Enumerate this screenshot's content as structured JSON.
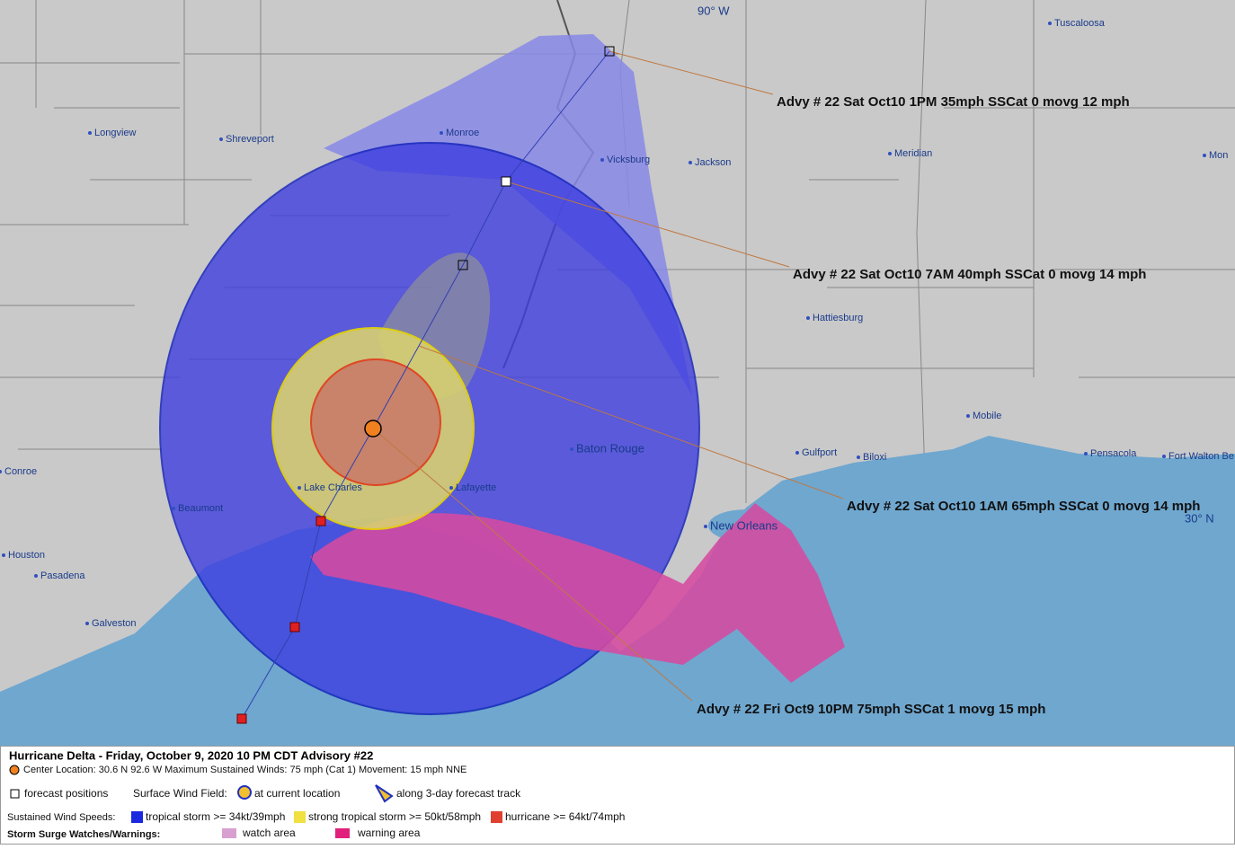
{
  "map": {
    "graticule": {
      "lon": "90° W",
      "lat": "30° N"
    },
    "cities": [
      "Tuscaloosa",
      "Longview",
      "Shreveport",
      "Monroe",
      "Vicksburg",
      "Jackson",
      "Meridian",
      "Mon",
      "Hattiesburg",
      "Mobile",
      "Gulfport",
      "Biloxi",
      "Pensacola",
      "Fort Walton Be",
      "Baton Rouge",
      "Lake Charles",
      "Lafayette",
      "Beaumont",
      "Conroe",
      "Houston",
      "Pasadena",
      "Galveston",
      "New Orleans"
    ],
    "advisories": [
      "Advy # 22 Sat Oct10 1PM  35mph SSCat 0 movg 12 mph",
      "Advy # 22 Sat Oct10 7AM  40mph SSCat 0 movg 14 mph",
      "Advy # 22 Sat Oct10 1AM  65mph SSCat 0 movg 14 mph",
      "Advy # 22 Fri Oct9 10PM  75mph SSCat 1 movg 15 mph"
    ]
  },
  "legend": {
    "title": "Hurricane Delta  -  Friday, October 9, 2020  10 PM CDT   Advisory #22",
    "center": "Center Location: 30.6 N  92.6 W   Maximum Sustained Winds: 75 mph (Cat 1) Movement: 15 mph NNE",
    "forecast_positions": "forecast positions",
    "surface_wind_field": "Surface Wind Field:",
    "at_current_location": "at current location",
    "along_track": "along 3-day forecast track",
    "sustained_wind_speeds": "Sustained Wind Speeds:",
    "tropical_storm": "tropical storm >= 34kt/39mph",
    "strong_tropical_storm": "strong tropical storm >= 50kt/58mph",
    "hurricane": "hurricane >= 64kt/74mph",
    "storm_surge": "Storm Surge Watches/Warnings:",
    "watch_area": "watch area",
    "warning_area": "warning area"
  }
}
